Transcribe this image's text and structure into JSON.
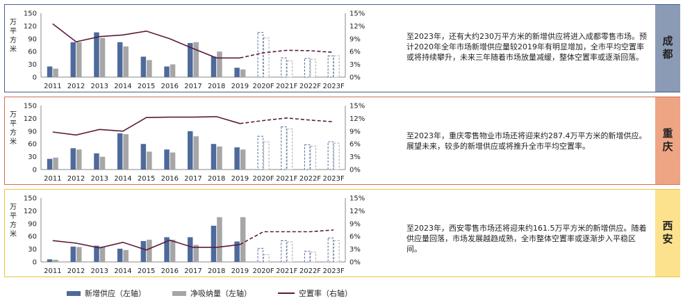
{
  "legend": {
    "supply": "新增供应（左轴）",
    "absorption": "净吸纳量（左轴）",
    "vacancy": "空置率（右轴）"
  },
  "colors": {
    "supply": "#4e6a9c",
    "absorption": "#a6a6a6",
    "vacancy": "#5b1a3a"
  },
  "chart_data": [
    {
      "type": "bar",
      "city": "成都",
      "title": "成都",
      "ylabel": "万平方米",
      "ylim": [
        0,
        150
      ],
      "y2lim": [
        0,
        0.15
      ],
      "yticks": [
        "0",
        "30",
        "60",
        "90",
        "120",
        "150"
      ],
      "y2ticks": [
        "0%",
        "3%",
        "6%",
        "9%",
        "12%",
        "15%"
      ],
      "categories": [
        "2011",
        "2012",
        "2013",
        "2014",
        "2015",
        "2016",
        "2017",
        "2018",
        "2019",
        "2020F",
        "2021F",
        "2022F",
        "2023F"
      ],
      "forecast_from_index": 9,
      "series": [
        {
          "name": "新增供应（左轴）",
          "values": [
            25,
            82,
            105,
            82,
            48,
            25,
            80,
            48,
            22,
            105,
            45,
            44,
            50
          ]
        },
        {
          "name": "净吸纳量（左轴）",
          "values": [
            20,
            82,
            92,
            72,
            40,
            30,
            82,
            60,
            18,
            92,
            38,
            42,
            50
          ]
        },
        {
          "name": "空置率（右轴）",
          "values": [
            12.5,
            8.3,
            9.5,
            9.9,
            10.8,
            9.0,
            6.7,
            4.5,
            4.5,
            5.7,
            6.3,
            6.2,
            5.8
          ]
        }
      ],
      "description": "至2023年，还有大约230万平方米的新增供应将进入成都零售市场。预计2020年全年市场新增供应量较2019年有明显增加，全市平均空置率或将持续攀升，未来三年随着市场放量减缓，整体空置率或逐渐回落。"
    },
    {
      "type": "bar",
      "city": "重庆",
      "title": "重庆",
      "ylabel": "万平方米",
      "ylim": [
        0,
        150
      ],
      "y2lim": [
        0,
        0.15
      ],
      "yticks": [
        "0",
        "30",
        "60",
        "90",
        "120",
        "150"
      ],
      "y2ticks": [
        "0%",
        "3%",
        "6%",
        "9%",
        "12%",
        "15%"
      ],
      "categories": [
        "2011",
        "2012",
        "2013",
        "2014",
        "2015",
        "2016",
        "2017",
        "2018",
        "2019",
        "2020F",
        "2021F",
        "2022F",
        "2023F"
      ],
      "forecast_from_index": 9,
      "series": [
        {
          "name": "新增供应（左轴）",
          "values": [
            25,
            50,
            38,
            85,
            60,
            47,
            90,
            60,
            52,
            78,
            100,
            58,
            65
          ]
        },
        {
          "name": "净吸纳量（左轴）",
          "values": [
            28,
            47,
            30,
            83,
            42,
            40,
            78,
            54,
            47,
            65,
            95,
            55,
            62
          ]
        },
        {
          "name": "空置率（右轴）",
          "values": [
            8.8,
            8.1,
            9.4,
            9.0,
            12.2,
            12.3,
            12.3,
            12.4,
            10.8,
            11.5,
            12.1,
            11.6,
            11.2
          ]
        }
      ],
      "description": "至2023年，重庆零售物业市场还将迎来约287.4万平方米的新增供应。展望未来，较多的新增供应或将推升全市平均空置率。"
    },
    {
      "type": "bar",
      "city": "西安",
      "title": "西安",
      "ylabel": "万平方米",
      "ylim": [
        0,
        150
      ],
      "y2lim": [
        0,
        0.15
      ],
      "yticks": [
        "0",
        "30",
        "60",
        "90",
        "120",
        "150"
      ],
      "y2ticks": [
        "0%",
        "3%",
        "6%",
        "9%",
        "12%",
        "15%"
      ],
      "categories": [
        "2011",
        "2012",
        "2013",
        "2014",
        "2015",
        "2016",
        "2017",
        "2018",
        "2019",
        "2020F",
        "2021F",
        "2022F",
        "2023F"
      ],
      "forecast_from_index": 9,
      "series": [
        {
          "name": "新增供应（左轴）",
          "values": [
            6,
            36,
            38,
            31,
            49,
            58,
            58,
            85,
            48,
            32,
            50,
            25,
            56
          ]
        },
        {
          "name": "净吸纳量（左轴）",
          "values": [
            5,
            35,
            36,
            28,
            52,
            52,
            40,
            105,
            105,
            17,
            47,
            23,
            50
          ]
        },
        {
          "name": "空置率（右轴）",
          "values": [
            5.0,
            4.4,
            3.3,
            4.6,
            2.8,
            5.1,
            3.4,
            3.4,
            4.1,
            7.1,
            7.1,
            7.1,
            7.5
          ]
        }
      ],
      "description": "至2023年，西安零售市场还将迎来约161.5万平方米的新增供应。随着供应量回落，市场发展越趋成熟，全市整体空置率或逐渐步入平稳区间。"
    }
  ]
}
